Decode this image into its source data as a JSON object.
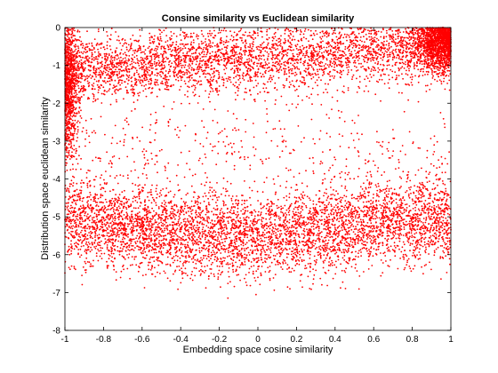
{
  "chart_data": {
    "type": "scatter",
    "title": "Consine similarity vs Euclidean similarity",
    "xlabel": "Embedding space cosine similarity",
    "ylabel": "Distribution space euclidean similarity",
    "xlim": [
      -1,
      1
    ],
    "ylim": [
      -8,
      0
    ],
    "xticks": [
      "-1",
      "-0.8",
      "-0.6",
      "-0.4",
      "-0.2",
      "0",
      "0.2",
      "0.4",
      "0.6",
      "0.8",
      "1"
    ],
    "yticks": [
      "-8",
      "-7",
      "-6",
      "-5",
      "-4",
      "-3",
      "-2",
      "-1",
      "0"
    ],
    "marker_color": "#ff0000",
    "grid": false,
    "clusters": [
      {
        "region": "upper band",
        "x_range": [
          -1,
          1
        ],
        "y_center": -0.8,
        "y_spread": 0.45,
        "approx_points": 3800
      },
      {
        "region": "upper-right dense corner",
        "x_range": [
          0.75,
          1
        ],
        "y_center": -0.3,
        "y_spread": 0.4,
        "approx_points": 1800
      },
      {
        "region": "left vertical edge",
        "x_range": [
          -1,
          -0.93
        ],
        "y_center": -1.6,
        "y_spread": 0.9,
        "approx_points": 900
      },
      {
        "region": "lower band",
        "x_range": [
          -1,
          1
        ],
        "y_center": -5.3,
        "y_spread": 0.55,
        "approx_points": 5200
      },
      {
        "region": "sparse middle",
        "x_range": [
          -1,
          1
        ],
        "y_center": -3.2,
        "y_spread": 0.7,
        "approx_points": 400
      }
    ]
  }
}
